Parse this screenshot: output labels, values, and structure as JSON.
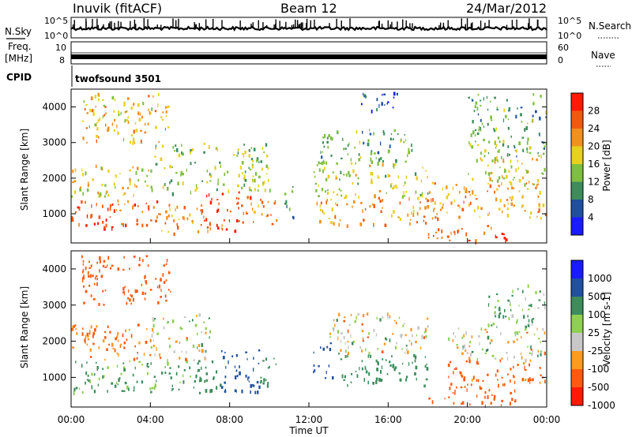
{
  "header": {
    "station": "Inuvik (fitACF)",
    "beam": "Beam 12",
    "date": "24/Mar/2012"
  },
  "param_panels": {
    "nsky_label": "N.Sky",
    "nsky_ticks": [
      "10^5",
      "10^0"
    ],
    "nsearch_label": "N.Search",
    "nsearch_ticks": [
      "10^5",
      "10^0"
    ],
    "freq_label": "Freq.",
    "freq_unit": "[MHz]",
    "freq_ticks": [
      "10",
      "8"
    ],
    "nave_label": "Nave",
    "nave_ticks": [
      "60",
      "0"
    ],
    "cpid_label": "CPID",
    "cpid_value": "twofsound 3501"
  },
  "colors": {
    "power_scale": [
      "#1a1aff",
      "#1f4fa0",
      "#3c8c5c",
      "#7fbf3f",
      "#e8d020",
      "#f09020",
      "#f05a10",
      "#ff1a00"
    ],
    "velocity_scale": [
      "#ff1a00",
      "#ff5a10",
      "#ff9a20",
      "#c8c8c8",
      "#8fd050",
      "#3c8c5c",
      "#2050a0",
      "#1a1aff"
    ]
  },
  "chart_data": [
    {
      "type": "heatmap",
      "name": "Power",
      "ylabel": "Slant Range [km]",
      "colorbar_label": "Power [dB]",
      "colorbar_ticks": [
        "28",
        "24",
        "20",
        "16",
        "12",
        "8",
        "4"
      ],
      "y_ticks": [
        "4000",
        "3000",
        "2000",
        "1000"
      ],
      "ylim": [
        180,
        4500
      ],
      "xlim": [
        "00:00",
        "24:00"
      ],
      "grid": false,
      "regions": [
        {
          "t0": 0.0,
          "t1": 2.2,
          "r0": 600,
          "r1": 1500,
          "value": 27
        },
        {
          "t0": 2.2,
          "t1": 4.5,
          "r0": 700,
          "r1": 1500,
          "value": 25
        },
        {
          "t0": 4.5,
          "t1": 6.5,
          "r0": 450,
          "r1": 1300,
          "value": 22
        },
        {
          "t0": 6.5,
          "t1": 8.5,
          "r0": 500,
          "r1": 1700,
          "value": 28
        },
        {
          "t0": 8.5,
          "t1": 10.4,
          "r0": 700,
          "r1": 1500,
          "value": 24
        },
        {
          "t0": 0.0,
          "t1": 4.0,
          "r0": 1500,
          "r1": 2400,
          "value": 18
        },
        {
          "t0": 4.0,
          "t1": 10.0,
          "r0": 1600,
          "r1": 3000,
          "value": 15
        },
        {
          "t0": 0.5,
          "t1": 5.0,
          "r0": 3000,
          "r1": 4400,
          "value": 20
        },
        {
          "t0": 10.6,
          "t1": 11.2,
          "r0": 700,
          "r1": 1900,
          "value": 10
        },
        {
          "t0": 12.2,
          "t1": 18.0,
          "r0": 700,
          "r1": 1500,
          "value": 22
        },
        {
          "t0": 12.2,
          "t1": 18.0,
          "r0": 1500,
          "r1": 2500,
          "value": 16
        },
        {
          "t0": 12.5,
          "t1": 17.5,
          "r0": 2500,
          "r1": 3400,
          "value": 12
        },
        {
          "t0": 14.5,
          "t1": 16.5,
          "r0": 3900,
          "r1": 4500,
          "value": 6
        },
        {
          "t0": 18.0,
          "t1": 24.0,
          "r0": 900,
          "r1": 1900,
          "value": 21
        },
        {
          "t0": 18.0,
          "t1": 22.0,
          "r0": 250,
          "r1": 700,
          "value": 26
        },
        {
          "t0": 20.0,
          "t1": 24.0,
          "r0": 1800,
          "r1": 2600,
          "value": 17
        },
        {
          "t0": 20.0,
          "t1": 24.0,
          "r0": 2600,
          "r1": 4400,
          "value": 12
        }
      ]
    },
    {
      "type": "heatmap",
      "name": "Velocity",
      "ylabel": "Slant Range [km]",
      "colorbar_label": "Velocity [m s-1]",
      "colorbar_ticks": [
        "1000",
        "500",
        "100",
        "25",
        "-25",
        "-100",
        "-500",
        "-1000"
      ],
      "y_ticks": [
        "4000",
        "3000",
        "2000",
        "1000"
      ],
      "x_ticks": [
        "00:00",
        "04:00",
        "08:00",
        "12:00",
        "16:00",
        "20:00",
        "00:00"
      ],
      "xlabel": "Time UT",
      "ylim": [
        180,
        4500
      ],
      "xlim": [
        "00:00",
        "24:00"
      ],
      "grid": false,
      "regions": [
        {
          "t0": 0.0,
          "t1": 6.0,
          "r0": 600,
          "r1": 1500,
          "value": 150
        },
        {
          "t0": 0.0,
          "t1": 4.0,
          "r0": 1500,
          "r1": 2500,
          "value": -150
        },
        {
          "t0": 4.0,
          "t1": 7.0,
          "r0": 1500,
          "r1": 2800,
          "value": 10
        },
        {
          "t0": 6.0,
          "t1": 7.5,
          "r0": 500,
          "r1": 1500,
          "value": 300
        },
        {
          "t0": 7.5,
          "t1": 9.5,
          "r0": 600,
          "r1": 1800,
          "value": 800
        },
        {
          "t0": 9.5,
          "t1": 10.4,
          "r0": 600,
          "r1": 1600,
          "value": 300
        },
        {
          "t0": 0.5,
          "t1": 5.0,
          "r0": 3000,
          "r1": 4400,
          "value": -300
        },
        {
          "t0": 12.2,
          "t1": 13.2,
          "r0": 1000,
          "r1": 2000,
          "value": 800
        },
        {
          "t0": 13.2,
          "t1": 18.0,
          "r0": 800,
          "r1": 1700,
          "value": 300
        },
        {
          "t0": 13.0,
          "t1": 18.0,
          "r0": 1700,
          "r1": 2800,
          "value": 0
        },
        {
          "t0": 18.0,
          "t1": 22.5,
          "r0": 250,
          "r1": 800,
          "value": -300
        },
        {
          "t0": 19.0,
          "t1": 24.0,
          "r0": 800,
          "r1": 1500,
          "value": -200
        },
        {
          "t0": 19.0,
          "t1": 24.0,
          "r0": 1500,
          "r1": 2400,
          "value": 0
        },
        {
          "t0": 21.0,
          "t1": 24.0,
          "r0": 2400,
          "r1": 3600,
          "value": 100
        }
      ]
    }
  ],
  "axis": {
    "xlabel": "Time UT"
  }
}
